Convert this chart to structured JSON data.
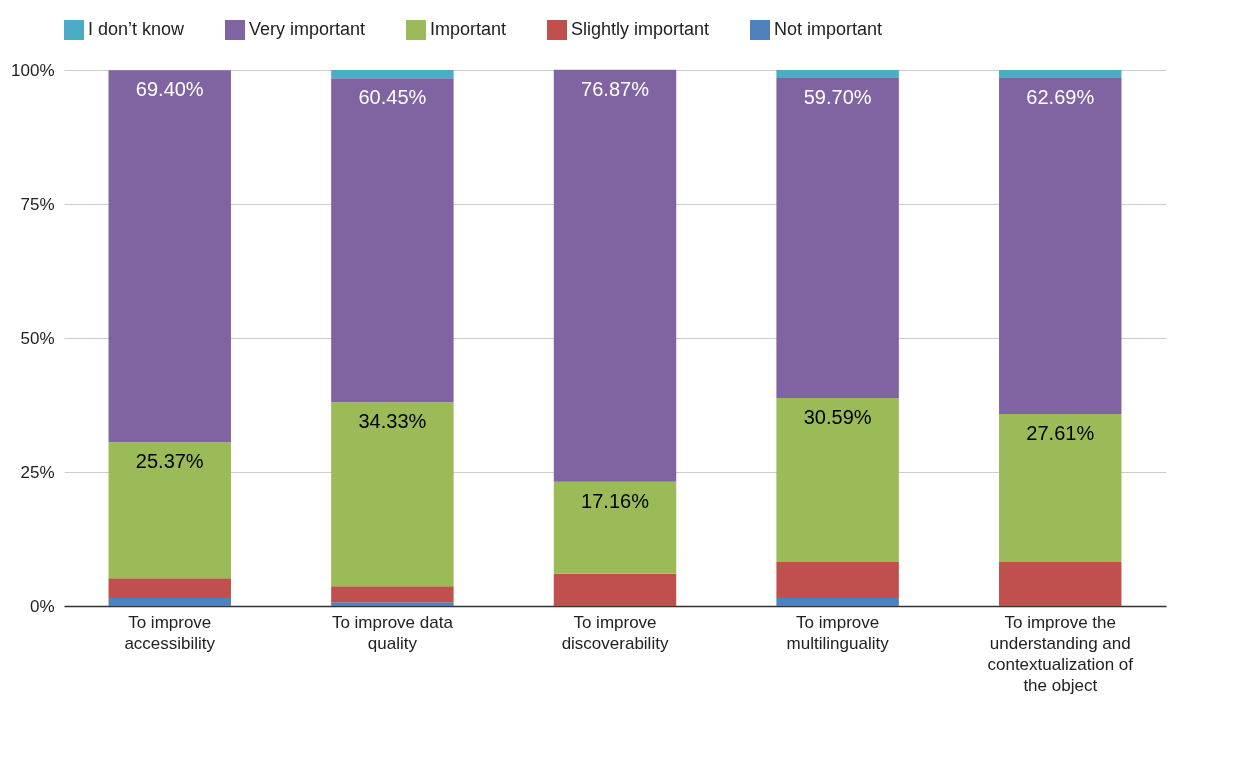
{
  "chart_data": {
    "type": "bar",
    "stacked": true,
    "categories": [
      "To improve accessibility",
      "To improve data quality",
      "To improve discoverability",
      "To improve multilinguality",
      "To improve the understanding and contextualization of the object"
    ],
    "series": [
      {
        "name": "Not important",
        "color": "#4f81bd",
        "values": [
          1.5,
          0.7,
          0,
          1.5,
          0
        ]
      },
      {
        "name": "Slightly important",
        "color": "#c0504d",
        "values": [
          3.7,
          3,
          6,
          6.7,
          8.2
        ]
      },
      {
        "name": "Important",
        "color": "#9bbb59",
        "values": [
          25.37,
          34.33,
          17.16,
          30.59,
          27.61
        ],
        "value_labels": [
          "25.37%",
          "34.33%",
          "17.16%",
          "30.59%",
          "27.61%"
        ]
      },
      {
        "name": "Very important",
        "color": "#8064a2",
        "values": [
          69.4,
          60.45,
          76.87,
          59.7,
          62.69
        ],
        "value_labels": [
          "69.40%",
          "60.45%",
          "76.87%",
          "59.70%",
          "62.69%"
        ]
      },
      {
        "name": "I don’t know",
        "color": "#4bacc6",
        "values": [
          0,
          1.5,
          0,
          1.5,
          1.5
        ]
      }
    ],
    "ylim": [
      0,
      100
    ],
    "yticks": [
      {
        "value": 0,
        "label": "0%"
      },
      {
        "value": 25,
        "label": "25%"
      },
      {
        "value": 50,
        "label": "50%"
      },
      {
        "value": 75,
        "label": "75%"
      },
      {
        "value": 100,
        "label": "100%"
      }
    ],
    "grid": "y",
    "legend": "top"
  }
}
